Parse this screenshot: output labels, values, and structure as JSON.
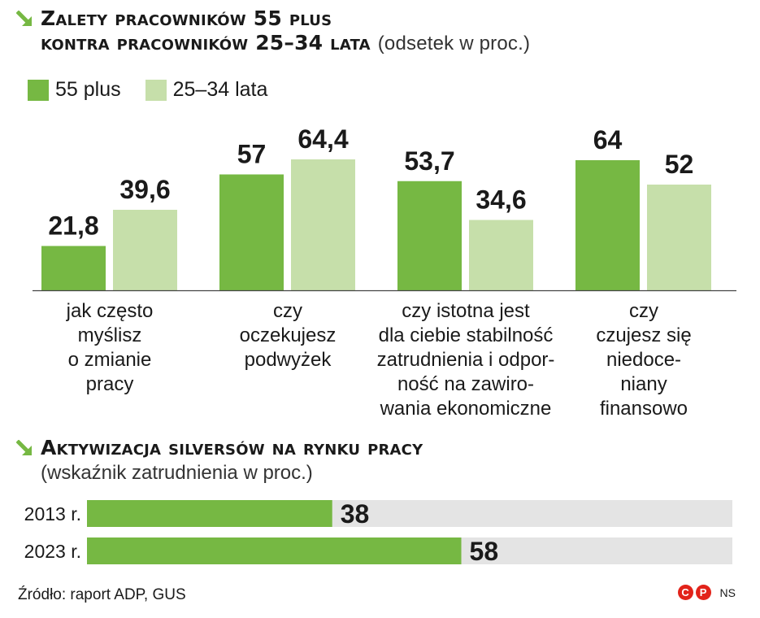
{
  "title": {
    "line1": "Zalety pracowników 55 plus",
    "line2": "kontra pracowników 25–34 lata",
    "suffix": "(odsetek w proc.)"
  },
  "legend": [
    "55 plus",
    "25–34 lata"
  ],
  "colors": {
    "dark_green": "#76b843",
    "light_green": "#c6dfaa",
    "bar_track": "#e4e4e4",
    "arrow_green": "#76b843",
    "logo_red": "#e2231a"
  },
  "chart_data": [
    {
      "type": "bar",
      "categories": [
        "jak często\nmyślisz\no zmianie\npracy",
        "czy\noczekujesz\npodwyżek",
        "czy istotna jest\ndla ciebie stabilność\nzatrudnienia i odpor-\nność na zawiro-\nwania ekonomiczne",
        "czy\nczujesz się\nniedoce-\nniany\nfinansowo"
      ],
      "series": [
        {
          "name": "55 plus",
          "values": [
            21.8,
            57,
            53.7,
            64
          ],
          "labels": [
            "21,8",
            "57",
            "53,7",
            "64"
          ]
        },
        {
          "name": "25–34 lata",
          "values": [
            39.6,
            64.4,
            34.6,
            52
          ],
          "labels": [
            "39,6",
            "64,4",
            "34,6",
            "52"
          ]
        }
      ],
      "title": "Zalety pracowników 55 plus kontra pracowników 25–34 lata",
      "ylabel": "odsetek w proc.",
      "ylim": [
        0,
        100
      ],
      "legend_position": "top-left",
      "grid": false
    },
    {
      "type": "bar",
      "orientation": "horizontal",
      "categories": [
        "2013 r.",
        "2023 r."
      ],
      "values": [
        38,
        58
      ],
      "labels": [
        "38",
        "58"
      ],
      "title": "Aktywizacja silversów na rynku pracy",
      "subtitle": "(wskaźnik zatrudnienia w proc.)",
      "xlim": [
        0,
        100
      ],
      "grid": false
    }
  ],
  "footer": {
    "source": "Źródło: raport ADP, GUS",
    "logo_letters": [
      "C",
      "P"
    ],
    "credit": "NS"
  }
}
